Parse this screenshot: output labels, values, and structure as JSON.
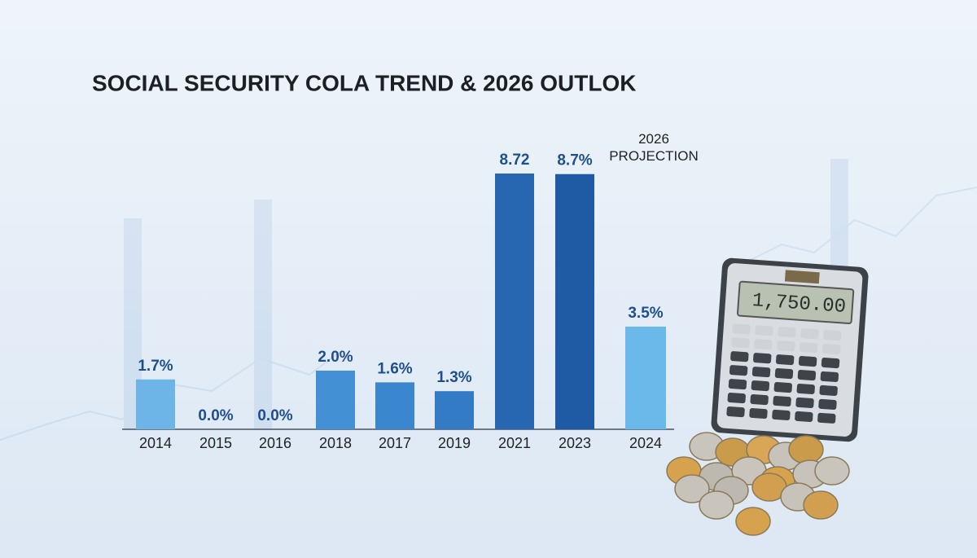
{
  "chart_data": {
    "type": "bar",
    "title": "SOCIAL SECURITY COLA TREND & 2026 OUTLOK",
    "categories": [
      "2014",
      "2015",
      "2016",
      "2018",
      "2017",
      "2019",
      "2021",
      "2023",
      "2024"
    ],
    "values": [
      1.7,
      0.0,
      0.0,
      2.0,
      1.6,
      1.3,
      8.72,
      8.7,
      3.5
    ],
    "value_labels": [
      "1.7%",
      "0.0%",
      "0.0%",
      "2.0%",
      "1.6%",
      "1.3%",
      "8.72",
      "8.7%",
      "3.5%"
    ],
    "colors": [
      "#6cb5e6",
      "#62ade3",
      "#4f9edc",
      "#4390d5",
      "#3a86cf",
      "#347bc6",
      "#2766b0",
      "#1f5aa5",
      "#6bb8ea"
    ],
    "annotation": "2026 PROJECTION",
    "annotation_category": 8
  },
  "calculator": {
    "display": "1,750.00"
  }
}
